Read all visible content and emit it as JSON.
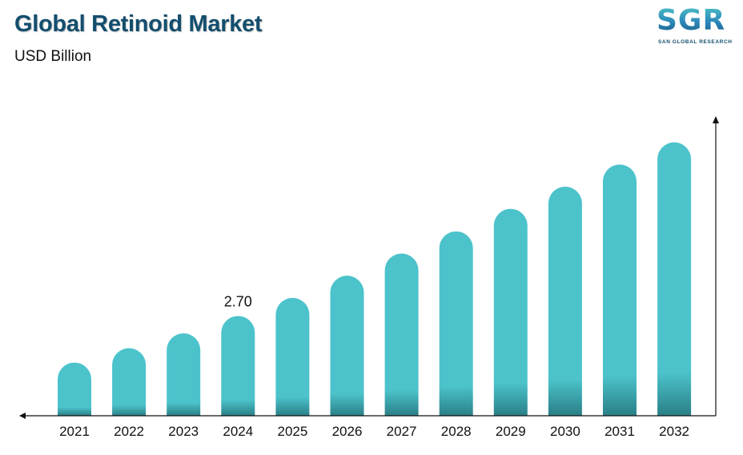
{
  "header": {
    "title": "Global Retinoid Market",
    "subtitle": "USD Billion"
  },
  "logo": {
    "mark": "SGR",
    "tagline": "SAN GLOBAL RESEARCH"
  },
  "chart_data": {
    "type": "bar",
    "title": "Global Retinoid Market",
    "ylabel": "USD Billion",
    "xlabel": "",
    "categories": [
      "2021",
      "2022",
      "2023",
      "2024",
      "2025",
      "2026",
      "2027",
      "2028",
      "2029",
      "2030",
      "2031",
      "2032"
    ],
    "values": [
      1.44,
      1.83,
      2.23,
      2.7,
      3.19,
      3.79,
      4.39,
      4.99,
      5.6,
      6.2,
      6.8,
      7.4
    ],
    "data_labels": [
      {
        "category": "2024",
        "text": "2.70"
      }
    ],
    "ylim": [
      0,
      8.0
    ],
    "grid": false,
    "legend": "none",
    "colors": {
      "bar": "#4cc3cb",
      "bar_base": "#2a7f86",
      "axis": "#111111"
    }
  }
}
